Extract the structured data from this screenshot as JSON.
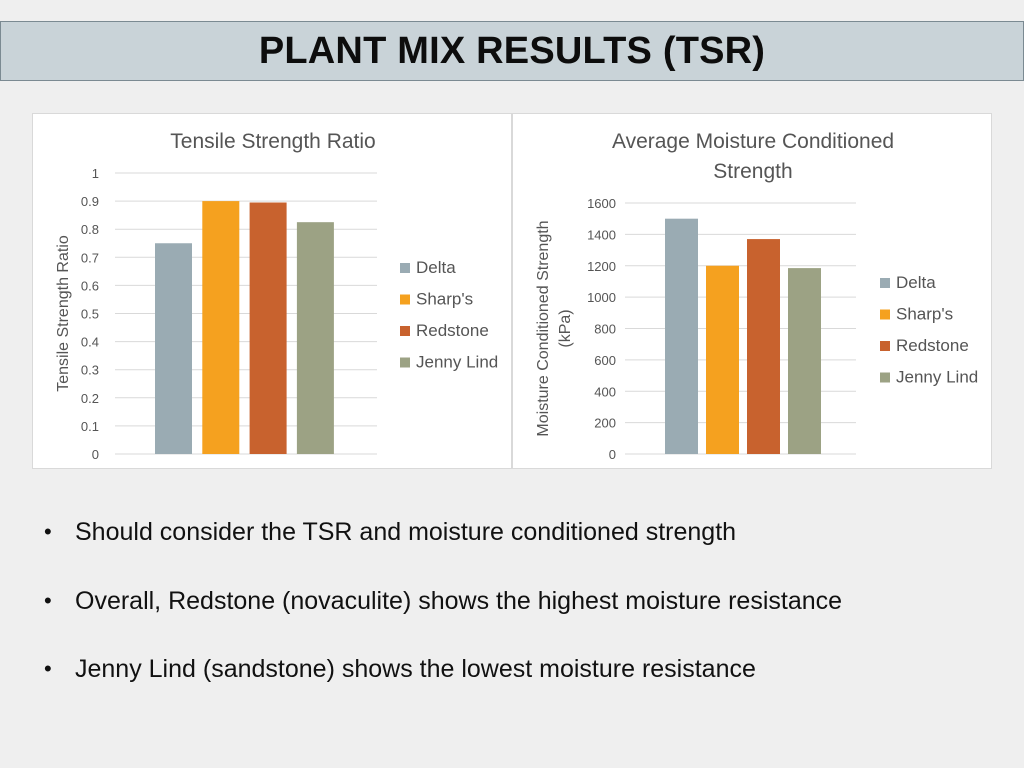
{
  "slide": {
    "title": "PLANT MIX RESULTS (TSR)",
    "bullets": [
      "Should consider the TSR and moisture conditioned strength",
      "Overall, Redstone (novaculite) shows the highest moisture resistance",
      "Jenny Lind (sandstone) shows the lowest moisture resistance"
    ]
  },
  "chart_data": [
    {
      "type": "bar",
      "title": "Tensile Strength Ratio",
      "xlabel": "",
      "ylabel": "Tensile Strength Ratio",
      "ylim": [
        0,
        1
      ],
      "yticks": [
        "0",
        "0.1",
        "0.2",
        "0.3",
        "0.4",
        "0.5",
        "0.6",
        "0.7",
        "0.8",
        "0.9",
        "1"
      ],
      "grid": true,
      "legend_position": "right",
      "series": [
        {
          "name": "Delta",
          "values": [
            0.75
          ],
          "color": "#9aabb3"
        },
        {
          "name": "Sharp's",
          "values": [
            0.9
          ],
          "color": "#f5a11f"
        },
        {
          "name": "Redstone",
          "values": [
            0.895
          ],
          "color": "#c8622e"
        },
        {
          "name": "Jenny Lind",
          "values": [
            0.825
          ],
          "color": "#9ca284"
        }
      ]
    },
    {
      "type": "bar",
      "title": "Average Moisture Conditioned Strength",
      "xlabel": "",
      "ylabel": "Moisture Conditioned Strength (kPa)",
      "ylim": [
        0,
        1600
      ],
      "yticks": [
        "0",
        "200",
        "400",
        "600",
        "800",
        "1000",
        "1200",
        "1400",
        "1600"
      ],
      "grid": true,
      "legend_position": "right",
      "series": [
        {
          "name": "Delta",
          "values": [
            1500
          ],
          "color": "#9aabb3"
        },
        {
          "name": "Sharp's",
          "values": [
            1200
          ],
          "color": "#f5a11f"
        },
        {
          "name": "Redstone",
          "values": [
            1370
          ],
          "color": "#c8622e"
        },
        {
          "name": "Jenny Lind",
          "values": [
            1185
          ],
          "color": "#9ca284"
        }
      ]
    }
  ]
}
